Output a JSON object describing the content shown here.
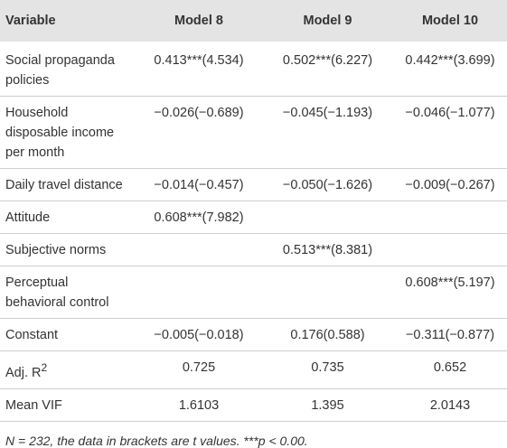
{
  "table": {
    "header": [
      "Variable",
      "Model 8",
      "Model 9",
      "Model 10"
    ],
    "rows": [
      {
        "variable": "Social propaganda policies",
        "cells": [
          "0.413***(4.534)",
          "0.502***(6.227)",
          "0.442***(3.699)"
        ]
      },
      {
        "variable": "Household disposable income per month",
        "cells": [
          "−0.026(−0.689)",
          "−0.045(−1.193)",
          "−0.046(−1.077)"
        ]
      },
      {
        "variable": "Daily travel distance",
        "cells": [
          "−0.014(−0.457)",
          "−0.050(−1.626)",
          "−0.009(−0.267)"
        ]
      },
      {
        "variable": "Attitude",
        "cells": [
          "0.608***(7.982)",
          null,
          null
        ]
      },
      {
        "variable": "Subjective norms",
        "cells": [
          null,
          "0.513***(8.381)",
          null
        ]
      },
      {
        "variable": "Perceptual behavioral control",
        "cells": [
          null,
          null,
          "0.608***(5.197)"
        ]
      },
      {
        "variable": "Constant",
        "cells": [
          "−0.005(−0.018)",
          "0.176(0.588)",
          "−0.311(−0.877)"
        ]
      },
      {
        "variable": "Adj. R",
        "variable_sup": "2",
        "cells": [
          "0.725",
          "0.735",
          "0.652"
        ]
      },
      {
        "variable": "Mean VIF",
        "cells": [
          "1.6103",
          "1.395",
          "2.0143"
        ]
      }
    ],
    "note": "N = 232, the data in brackets are t values. ***p < 0.00."
  }
}
